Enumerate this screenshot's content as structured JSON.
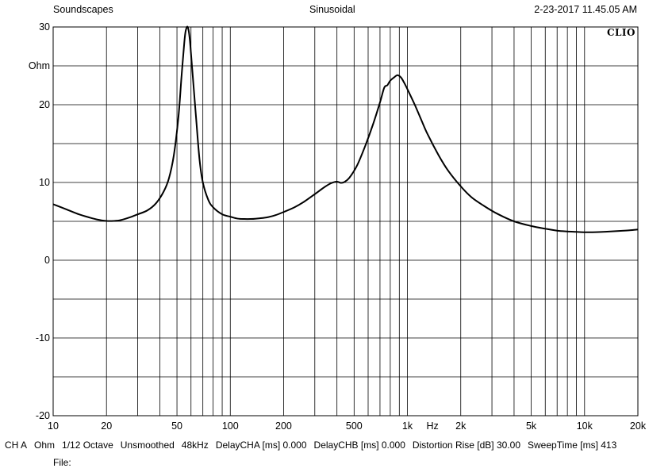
{
  "header": {
    "left": "Soundscapes",
    "center": "Sinusoidal",
    "right": "2-23-2017 11.45.05 AM",
    "brand": "CLIO"
  },
  "chart_data": {
    "type": "line",
    "title": "",
    "xscale": "log",
    "xlim": [
      10,
      20000
    ],
    "ylim": [
      -20,
      30
    ],
    "grid": true,
    "ylabel": "Ohm",
    "xlabel": "Hz",
    "ylabel_tick_position": 25,
    "y_ticks": [
      {
        "value": 30,
        "label": "30"
      },
      {
        "value": 20,
        "label": "20"
      },
      {
        "value": 10,
        "label": "10"
      },
      {
        "value": 0,
        "label": "0"
      },
      {
        "value": -10,
        "label": "-10"
      },
      {
        "value": -20,
        "label": "-20"
      }
    ],
    "x_ticks": [
      {
        "value": 10,
        "label": "10"
      },
      {
        "value": 20,
        "label": "20"
      },
      {
        "value": 50,
        "label": "50"
      },
      {
        "value": 100,
        "label": "100"
      },
      {
        "value": 200,
        "label": "200"
      },
      {
        "value": 500,
        "label": "500"
      },
      {
        "value": 1000,
        "label": "1k"
      },
      {
        "value": 2000,
        "label": "2k"
      },
      {
        "value": 5000,
        "label": "5k"
      },
      {
        "value": 10000,
        "label": "10k"
      },
      {
        "value": 20000,
        "label": "20k"
      }
    ],
    "series": [
      {
        "color": "#000000",
        "points": [
          [
            10,
            7.2
          ],
          [
            12,
            6.5
          ],
          [
            14,
            5.9
          ],
          [
            16,
            5.5
          ],
          [
            18,
            5.2
          ],
          [
            20,
            5.05
          ],
          [
            22,
            5.05
          ],
          [
            24,
            5.15
          ],
          [
            27,
            5.5
          ],
          [
            30,
            5.9
          ],
          [
            34,
            6.4
          ],
          [
            38,
            7.3
          ],
          [
            42,
            8.8
          ],
          [
            45,
            10.5
          ],
          [
            48,
            13.5
          ],
          [
            51,
            18.5
          ],
          [
            53,
            23.5
          ],
          [
            55,
            28
          ],
          [
            56,
            29.5
          ],
          [
            57.5,
            30
          ],
          [
            59,
            28.5
          ],
          [
            61,
            24.5
          ],
          [
            64,
            18.5
          ],
          [
            67,
            13
          ],
          [
            70,
            10
          ],
          [
            75,
            7.8
          ],
          [
            80,
            6.8
          ],
          [
            90,
            5.9
          ],
          [
            100,
            5.6
          ],
          [
            110,
            5.35
          ],
          [
            120,
            5.3
          ],
          [
            130,
            5.3
          ],
          [
            140,
            5.35
          ],
          [
            160,
            5.5
          ],
          [
            180,
            5.8
          ],
          [
            200,
            6.2
          ],
          [
            230,
            6.8
          ],
          [
            260,
            7.5
          ],
          [
            300,
            8.5
          ],
          [
            340,
            9.4
          ],
          [
            370,
            9.9
          ],
          [
            400,
            10.1
          ],
          [
            420,
            9.95
          ],
          [
            440,
            10.05
          ],
          [
            470,
            10.6
          ],
          [
            520,
            12.2
          ],
          [
            580,
            14.8
          ],
          [
            640,
            17.5
          ],
          [
            700,
            20.3
          ],
          [
            740,
            22.2
          ],
          [
            770,
            22.5
          ],
          [
            800,
            23.1
          ],
          [
            850,
            23.6
          ],
          [
            880,
            23.8
          ],
          [
            920,
            23.5
          ],
          [
            960,
            22.8
          ],
          [
            1000,
            22
          ],
          [
            1100,
            20
          ],
          [
            1200,
            18
          ],
          [
            1300,
            16.2
          ],
          [
            1500,
            13.5
          ],
          [
            1700,
            11.5
          ],
          [
            2000,
            9.5
          ],
          [
            2300,
            8.1
          ],
          [
            2700,
            7
          ],
          [
            3200,
            6
          ],
          [
            4000,
            5
          ],
          [
            5000,
            4.4
          ],
          [
            6000,
            4.05
          ],
          [
            7000,
            3.8
          ],
          [
            8000,
            3.7
          ],
          [
            9000,
            3.65
          ],
          [
            10000,
            3.6
          ],
          [
            11000,
            3.6
          ],
          [
            12000,
            3.62
          ],
          [
            14000,
            3.7
          ],
          [
            16000,
            3.78
          ],
          [
            18000,
            3.85
          ],
          [
            20000,
            3.95
          ]
        ]
      }
    ]
  },
  "footer": {
    "items": [
      "CH A",
      "Ohm",
      "1/12 Octave",
      "Unsmoothed",
      "48kHz",
      "DelayCHA [ms] 0.000",
      "DelayCHB [ms] 0.000",
      "Distortion Rise [dB] 30.00",
      "SweepTime [ms] 413"
    ],
    "file_label": "File:"
  }
}
